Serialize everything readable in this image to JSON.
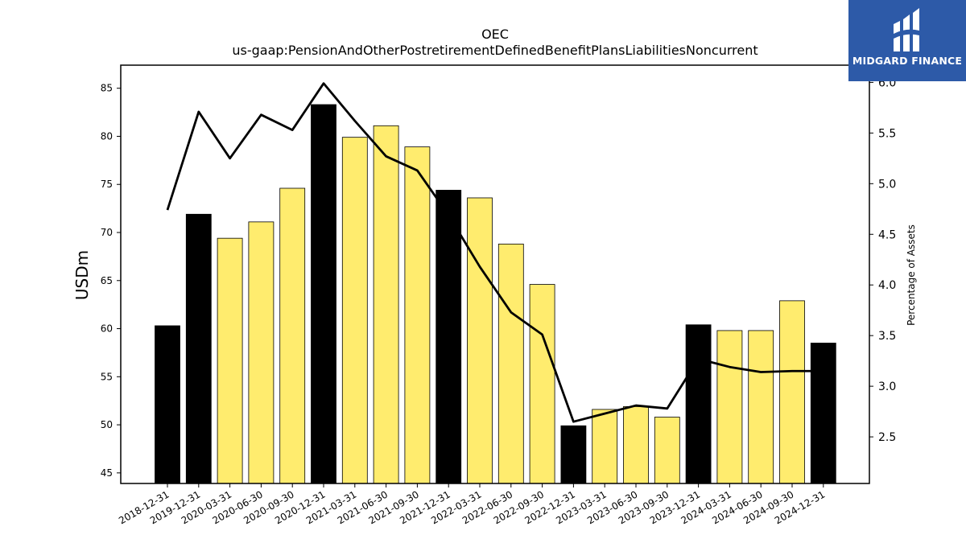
{
  "chart_data": {
    "type": "bar",
    "title": "OEC",
    "subtitle": "us-gaap:PensionAndOtherPostretirementDefinedBenefitPlansLiabilitiesNoncurrent",
    "ylabel": "USDm",
    "y2label": "Percentage of Assets",
    "ylim": [
      43.9,
      87.4
    ],
    "y2lim": [
      2.04,
      6.17
    ],
    "yticks": [
      "45",
      "50",
      "55",
      "60",
      "65",
      "70",
      "75",
      "80",
      "85"
    ],
    "y2ticks": [
      "2.5",
      "3.0",
      "3.5",
      "4.0",
      "4.5",
      "5.0",
      "5.5",
      "6.0"
    ],
    "grid": false,
    "categories": [
      "2018-12-31",
      "2019-12-31",
      "2020-03-31",
      "2020-06-30",
      "2020-09-30",
      "2020-12-31",
      "2021-03-31",
      "2021-06-30",
      "2021-09-30",
      "2021-12-31",
      "2022-03-31",
      "2022-06-30",
      "2022-09-30",
      "2022-12-31",
      "2023-03-31",
      "2023-06-30",
      "2023-09-30",
      "2023-12-31",
      "2024-03-31",
      "2024-06-30",
      "2024-09-30",
      "2024-12-31"
    ],
    "series": [
      {
        "type": "bar",
        "values": [
          60.3,
          71.9,
          69.4,
          71.1,
          74.6,
          83.3,
          79.9,
          81.1,
          78.9,
          74.4,
          73.6,
          68.8,
          64.6,
          49.9,
          51.6,
          51.9,
          50.8,
          60.4,
          59.8,
          59.8,
          62.9,
          58.5
        ],
        "annual": [
          true,
          true,
          false,
          false,
          false,
          true,
          false,
          false,
          false,
          true,
          false,
          false,
          false,
          true,
          false,
          false,
          false,
          true,
          false,
          false,
          false,
          true
        ]
      },
      {
        "type": "line",
        "axis": "right",
        "values": [
          4.74,
          5.71,
          5.25,
          5.68,
          5.53,
          5.99,
          5.62,
          5.27,
          5.13,
          4.69,
          4.18,
          3.73,
          3.51,
          2.65,
          2.73,
          2.81,
          2.78,
          3.27,
          3.19,
          3.14,
          3.15,
          3.15
        ]
      }
    ],
    "colors": {
      "annual_bar": "#000000",
      "quarterly_bar": "#ffec6e",
      "line": "#000000"
    }
  },
  "logo": {
    "text": "MIDGARD FINANCE",
    "color": "#2d5aa8"
  }
}
